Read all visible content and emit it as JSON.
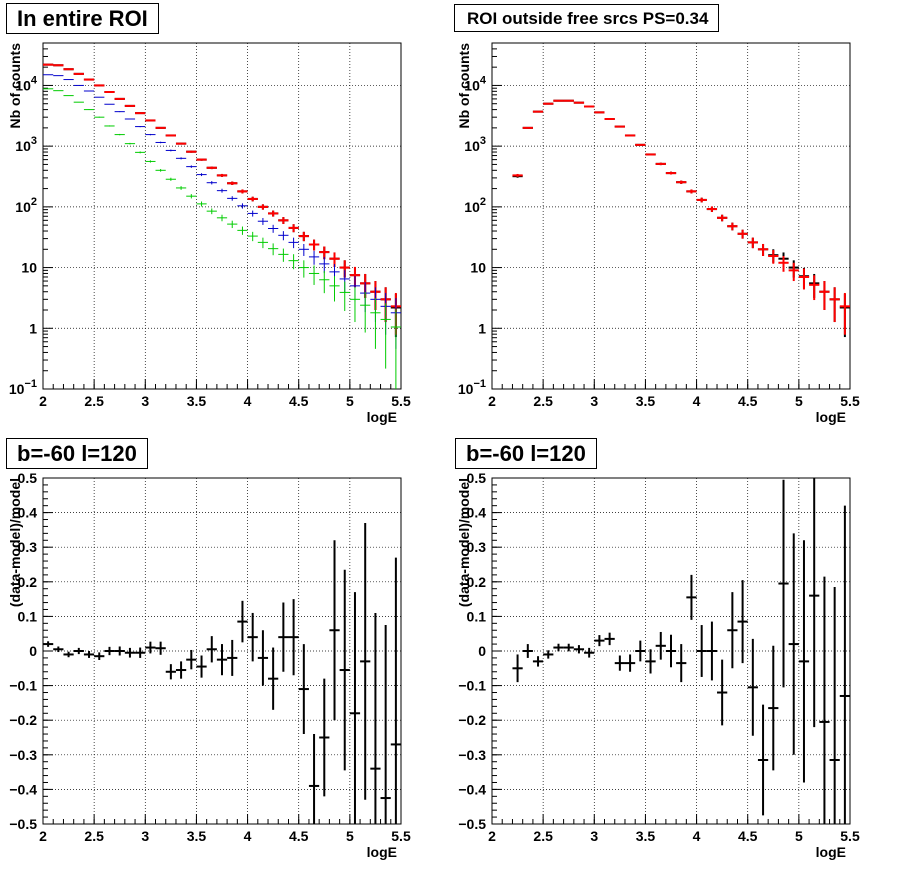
{
  "chart_data": [
    {
      "type": "scatter",
      "title": "In entire ROI",
      "xlabel": "logE",
      "ylabel": "Nb of counts",
      "xlim": [
        2,
        5.5
      ],
      "ylim": [
        0.1,
        50000
      ],
      "yscale": "log",
      "grid": true,
      "x_ticks": [
        "2",
        "2.5",
        "3",
        "3.5",
        "4",
        "4.5",
        "5",
        "5.5"
      ],
      "y_ticks": [
        {
          "value": 0.1,
          "base": "10",
          "exp": "−1"
        },
        {
          "value": 1,
          "base": "1",
          "exp": ""
        },
        {
          "value": 10,
          "base": "10",
          "exp": ""
        },
        {
          "value": 100,
          "base": "10",
          "exp": "2"
        },
        {
          "value": 1000,
          "base": "10",
          "exp": "3"
        },
        {
          "value": 10000,
          "base": "10",
          "exp": "4"
        }
      ],
      "x": [
        2.05,
        2.15,
        2.25,
        2.35,
        2.45,
        2.55,
        2.65,
        2.75,
        2.85,
        2.95,
        3.05,
        3.15,
        3.25,
        3.35,
        3.45,
        3.55,
        3.65,
        3.75,
        3.85,
        3.95,
        4.05,
        4.15,
        4.25,
        4.35,
        4.45,
        4.55,
        4.65,
        4.75,
        4.85,
        4.95,
        5.05,
        5.15,
        5.25,
        5.35,
        5.45
      ],
      "series": [
        {
          "color": "#000000",
          "values": [
            22000,
            21500,
            18500,
            15500,
            12500,
            10000,
            7800,
            6000,
            4600,
            3500,
            2650,
            2000,
            1500,
            1100,
            810,
            600,
            440,
            330,
            245,
            180,
            135,
            100,
            78,
            60,
            45,
            33,
            24,
            18,
            14,
            10,
            7.5,
            5.5,
            4,
            3,
            2.2
          ]
        },
        {
          "color": "#ff0000",
          "values": [
            22000,
            21500,
            18500,
            15500,
            12500,
            10000,
            7800,
            6000,
            4600,
            3500,
            2650,
            2000,
            1500,
            1100,
            810,
            600,
            440,
            330,
            245,
            180,
            135,
            100,
            78,
            60,
            45,
            33,
            24,
            18,
            14,
            10,
            7.5,
            5.5,
            4,
            3,
            2.3
          ]
        },
        {
          "color": "#0000cc",
          "values": [
            15000,
            14500,
            12500,
            10000,
            8100,
            6400,
            4900,
            3700,
            2800,
            2100,
            1550,
            1150,
            850,
            630,
            460,
            340,
            250,
            185,
            138,
            104,
            78,
            58,
            44,
            34,
            26,
            20,
            15,
            11.5,
            8.5,
            6.5,
            5,
            3.8,
            3,
            2.3,
            1.8
          ]
        },
        {
          "color": "#00cc00",
          "values": [
            8800,
            8200,
            6800,
            5300,
            4000,
            3000,
            2150,
            1550,
            1100,
            790,
            560,
            400,
            285,
            205,
            150,
            112,
            85,
            66,
            52,
            41,
            33,
            26,
            20.5,
            16.5,
            13,
            10,
            8,
            6.3,
            5,
            3.9,
            3,
            2.4,
            1.8,
            1.4,
            1.05
          ]
        }
      ]
    },
    {
      "type": "scatter",
      "title": "ROI outside free srcs PS=0.34",
      "xlabel": "logE",
      "ylabel": "Nb of counts",
      "xlim": [
        2,
        5.5
      ],
      "ylim": [
        0.1,
        50000
      ],
      "yscale": "log",
      "grid": true,
      "x_ticks": [
        "2",
        "2.5",
        "3",
        "3.5",
        "4",
        "4.5",
        "5",
        "5.5"
      ],
      "y_ticks": [
        {
          "value": 0.1,
          "base": "10",
          "exp": "−1"
        },
        {
          "value": 1,
          "base": "1",
          "exp": ""
        },
        {
          "value": 10,
          "base": "10",
          "exp": ""
        },
        {
          "value": 100,
          "base": "10",
          "exp": "2"
        },
        {
          "value": 1000,
          "base": "10",
          "exp": "3"
        },
        {
          "value": 10000,
          "base": "10",
          "exp": "4"
        }
      ],
      "x": [
        2.25,
        2.35,
        2.45,
        2.55,
        2.65,
        2.75,
        2.85,
        2.95,
        3.05,
        3.15,
        3.25,
        3.35,
        3.45,
        3.55,
        3.65,
        3.75,
        3.85,
        3.95,
        4.05,
        4.15,
        4.25,
        4.35,
        4.45,
        4.55,
        4.65,
        4.75,
        4.85,
        4.95,
        5.05,
        5.15,
        5.25,
        5.35,
        5.45
      ],
      "series": [
        {
          "color": "#000000",
          "values": [
            320,
            2000,
            3700,
            5000,
            5600,
            5600,
            5200,
            4500,
            3600,
            2800,
            2100,
            1500,
            1050,
            730,
            510,
            360,
            255,
            180,
            130,
            92,
            66,
            48,
            36,
            26,
            20,
            16,
            14,
            10,
            7.2,
            5.5,
            4,
            3,
            2.2
          ]
        },
        {
          "color": "#ff0000",
          "values": [
            330,
            2000,
            3700,
            5000,
            5600,
            5600,
            5200,
            4500,
            3600,
            2800,
            2100,
            1500,
            1050,
            730,
            510,
            360,
            255,
            180,
            130,
            92,
            66,
            48,
            36,
            26,
            20,
            15.5,
            12,
            9,
            7,
            5.2,
            4,
            3,
            2.3
          ]
        }
      ]
    },
    {
      "type": "scatter",
      "title": "b=-60 l=120",
      "xlabel": "logE",
      "ylabel": "(data-model)/model",
      "xlim": [
        2,
        5.5
      ],
      "ylim": [
        -0.5,
        0.5
      ],
      "grid": true,
      "x_ticks": [
        "2",
        "2.5",
        "3",
        "3.5",
        "4",
        "4.5",
        "5",
        "5.5"
      ],
      "y_ticks": [
        "−0.5",
        "−0.4",
        "−0.3",
        "−0.2",
        "−0.1",
        "0",
        "0.1",
        "0.2",
        "0.3",
        "0.4",
        "0.5"
      ],
      "x": [
        2.05,
        2.15,
        2.25,
        2.35,
        2.45,
        2.55,
        2.65,
        2.75,
        2.85,
        2.95,
        3.05,
        3.15,
        3.25,
        3.35,
        3.45,
        3.55,
        3.65,
        3.75,
        3.85,
        3.95,
        4.05,
        4.15,
        4.25,
        4.35,
        4.45,
        4.55,
        4.65,
        4.75,
        4.85,
        4.95,
        5.05,
        5.15,
        5.25,
        5.35,
        5.45
      ],
      "series": [
        {
          "color": "#000000",
          "values": [
            0.02,
            0.005,
            -0.01,
            0.0,
            -0.01,
            -0.015,
            0.0,
            0.0,
            -0.005,
            -0.005,
            0.01,
            0.008,
            -0.06,
            -0.055,
            -0.025,
            -0.045,
            0.005,
            -0.025,
            -0.02,
            0.085,
            0.04,
            -0.02,
            -0.08,
            0.04,
            0.04,
            -0.11,
            -0.39,
            -0.25,
            0.06,
            -0.055,
            -0.18,
            -0.03,
            -0.34,
            -0.425,
            -0.27
          ],
          "errors": [
            0.008,
            0.008,
            0.008,
            0.009,
            0.01,
            0.011,
            0.012,
            0.013,
            0.014,
            0.015,
            0.017,
            0.019,
            0.022,
            0.025,
            0.028,
            0.032,
            0.038,
            0.045,
            0.052,
            0.06,
            0.07,
            0.08,
            0.09,
            0.1,
            0.11,
            0.13,
            0.15,
            0.17,
            0.26,
            0.29,
            0.35,
            0.4,
            0.45,
            0.5,
            0.54
          ]
        }
      ]
    },
    {
      "type": "scatter",
      "title": "b=-60 l=120",
      "xlabel": "logE",
      "ylabel": "(data-model)/model",
      "xlim": [
        2,
        5.5
      ],
      "ylim": [
        -0.5,
        0.5
      ],
      "grid": true,
      "x_ticks": [
        "2",
        "2.5",
        "3",
        "3.5",
        "4",
        "4.5",
        "5",
        "5.5"
      ],
      "y_ticks": [
        "−0.5",
        "−0.4",
        "−0.3",
        "−0.2",
        "−0.1",
        "0",
        "0.1",
        "0.2",
        "0.3",
        "0.4",
        "0.5"
      ],
      "x": [
        2.25,
        2.35,
        2.45,
        2.55,
        2.65,
        2.75,
        2.85,
        2.95,
        3.05,
        3.15,
        3.25,
        3.35,
        3.45,
        3.55,
        3.65,
        3.75,
        3.85,
        3.95,
        4.05,
        4.15,
        4.25,
        4.35,
        4.45,
        4.55,
        4.65,
        4.75,
        4.85,
        4.95,
        5.05,
        5.15,
        5.25,
        5.35,
        5.45
      ],
      "series": [
        {
          "color": "#000000",
          "values": [
            -0.05,
            0.0,
            -0.03,
            -0.01,
            0.01,
            0.01,
            0.005,
            -0.005,
            0.03,
            0.035,
            -0.035,
            -0.035,
            0.0,
            -0.03,
            0.015,
            0.0,
            -0.035,
            0.155,
            0.0,
            0.0,
            -0.12,
            0.06,
            0.085,
            -0.105,
            -0.315,
            -0.165,
            0.195,
            0.02,
            -0.03,
            0.16,
            -0.205,
            -0.315,
            -0.13
          ],
          "errors": [
            0.04,
            0.02,
            0.015,
            0.012,
            0.011,
            0.011,
            0.012,
            0.014,
            0.016,
            0.018,
            0.022,
            0.025,
            0.03,
            0.035,
            0.04,
            0.047,
            0.055,
            0.065,
            0.075,
            0.085,
            0.095,
            0.11,
            0.12,
            0.14,
            0.16,
            0.18,
            0.3,
            0.32,
            0.35,
            0.38,
            0.42,
            0.5,
            0.55
          ]
        }
      ]
    }
  ]
}
